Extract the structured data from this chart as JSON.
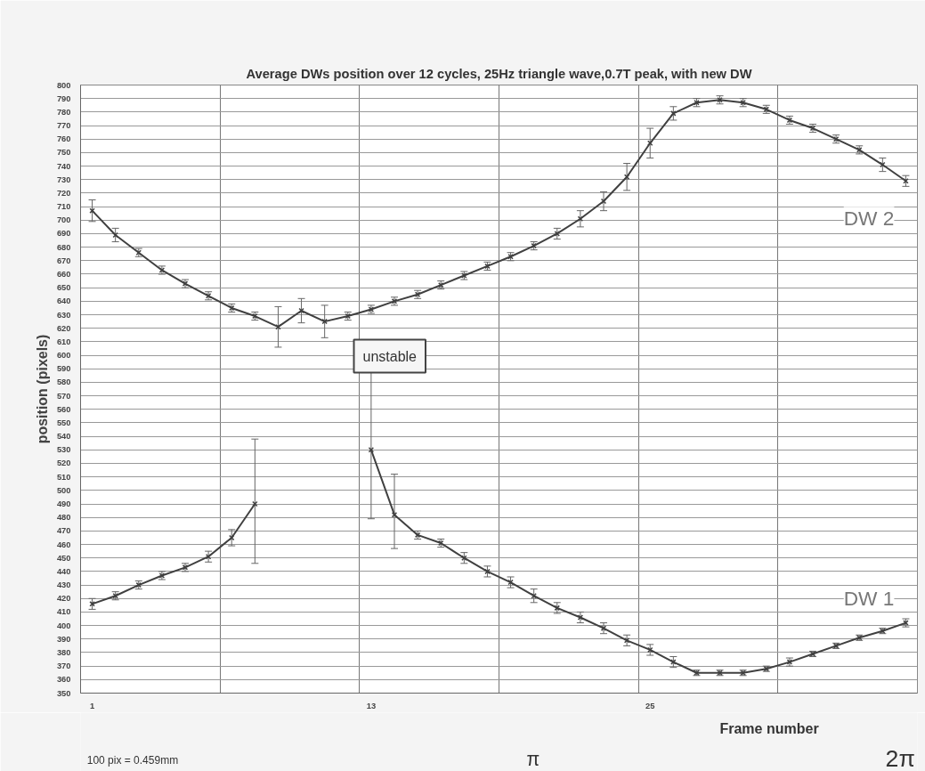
{
  "chart_data": {
    "type": "line",
    "title": "Average DWs position over 12 cycles, 25Hz triangle wave,0.7T peak, with new DW",
    "xlabel": "Frame number",
    "ylabel": "position (pixels)",
    "categories": [
      "1",
      null,
      null,
      null,
      null,
      null,
      null,
      null,
      null,
      null,
      null,
      null,
      "13",
      null,
      null,
      null,
      null,
      null,
      null,
      null,
      null,
      null,
      null,
      null,
      "25",
      null,
      null,
      null,
      null,
      null,
      null,
      null,
      null,
      null,
      null,
      null
    ],
    "series": [
      {
        "name": "DW 2",
        "color": "#404040",
        "values": [
          707,
          689,
          676,
          663,
          653,
          644,
          635,
          629,
          621,
          633,
          625,
          629,
          634,
          640,
          645,
          652,
          659,
          666,
          673,
          681,
          690,
          701,
          714,
          732,
          757,
          779,
          787,
          789,
          787,
          782,
          774,
          768,
          760,
          752,
          741,
          729
        ],
        "errors": [
          8,
          5,
          3,
          3,
          3,
          3,
          3,
          3,
          15,
          9,
          12,
          3,
          3,
          3,
          3,
          3,
          3,
          3,
          3,
          3,
          4,
          6,
          7,
          10,
          11,
          5,
          3,
          3,
          3,
          3,
          3,
          3,
          3,
          3,
          5,
          4
        ]
      },
      {
        "name": "DW 1",
        "color": "#404040",
        "values": [
          416,
          422,
          430,
          437,
          443,
          451,
          465,
          490,
          null,
          null,
          null,
          null,
          530,
          482,
          467,
          461,
          450,
          440,
          432,
          422,
          413,
          406,
          398,
          389,
          382,
          373,
          365,
          365,
          365,
          368,
          373,
          379,
          385,
          391,
          396,
          402
        ],
        "errors": [
          4,
          3,
          3,
          3,
          3,
          4,
          6,
          [
            446,
            538
          ],
          null,
          null,
          null,
          null,
          [
            479,
            589
          ],
          [
            457,
            512
          ],
          3,
          3,
          4,
          4,
          4,
          5,
          4,
          4,
          4,
          4,
          4,
          4,
          2,
          2,
          2,
          2,
          3,
          2,
          2,
          2,
          2,
          3
        ]
      }
    ],
    "ylim": [
      350,
      800
    ],
    "yticks": [
      350,
      360,
      370,
      380,
      390,
      400,
      410,
      420,
      430,
      440,
      450,
      460,
      470,
      480,
      490,
      500,
      510,
      520,
      530,
      540,
      550,
      560,
      570,
      580,
      590,
      600,
      610,
      620,
      630,
      640,
      650,
      660,
      670,
      680,
      690,
      700,
      710,
      720,
      730,
      740,
      750,
      760,
      770,
      780,
      790,
      800
    ],
    "grid": true,
    "legend": false,
    "marker": "cross",
    "line_style": "solid",
    "annotations": [
      "unstable",
      "100 pix = 0.459mm",
      "π",
      "2π"
    ]
  }
}
